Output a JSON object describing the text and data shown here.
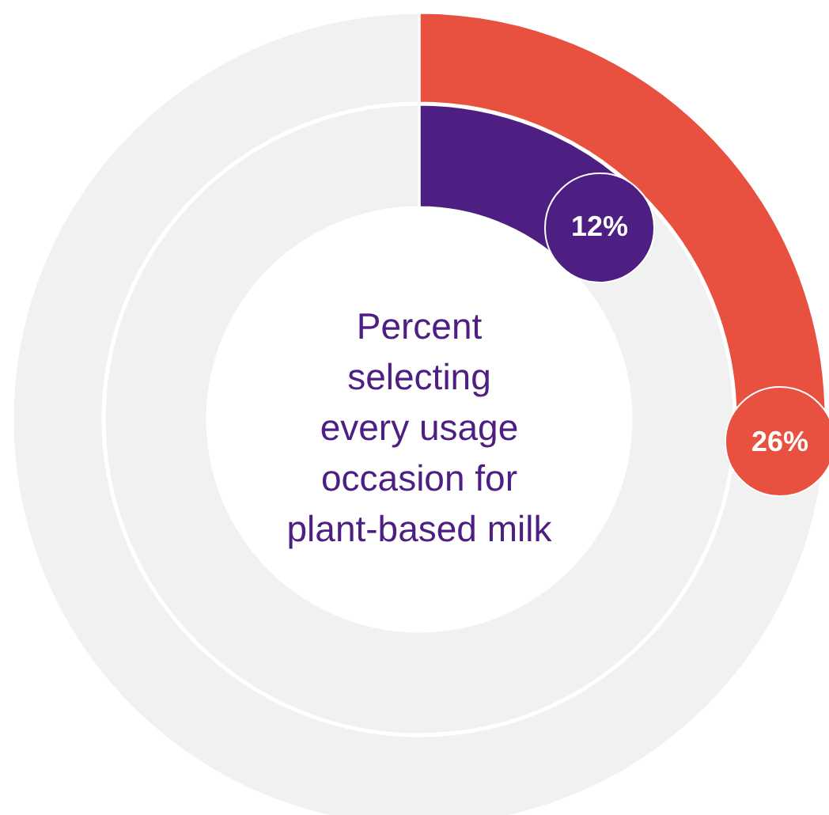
{
  "chart_data": {
    "type": "donut",
    "title": "Percent\nselecting\nevery usage\noccasion for\nplant-based milk",
    "series": [
      {
        "values": [
          12,
          88
        ],
        "colors": [
          "#4e1f82",
          "#f1f1f1"
        ],
        "value_labels": [
          "12%",
          null
        ]
      },
      {
        "values": [
          26,
          74
        ],
        "colors": [
          "#e8503f",
          "#f1f1f1"
        ],
        "value_labels": [
          "26%",
          null
        ]
      }
    ]
  }
}
